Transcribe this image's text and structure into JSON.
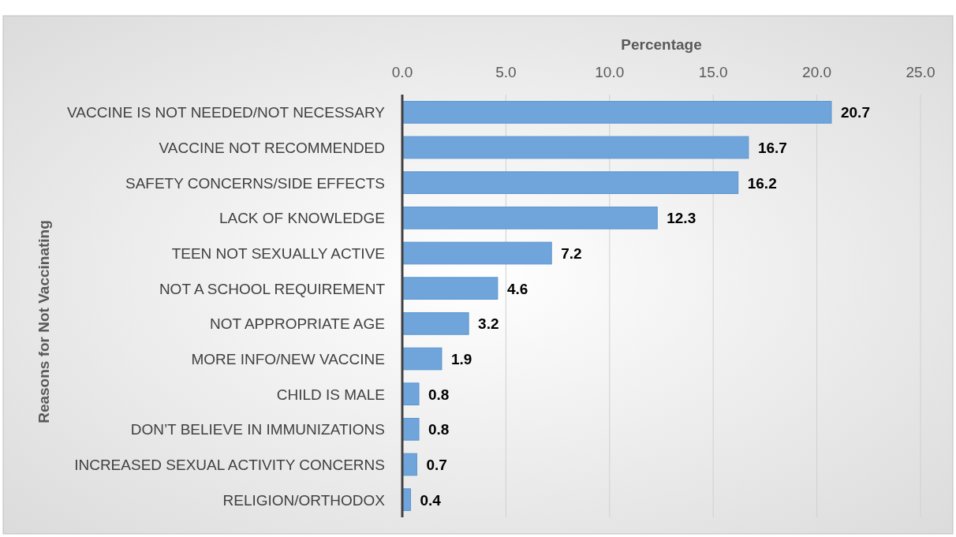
{
  "chart_data": {
    "type": "bar",
    "orientation": "horizontal",
    "xlabel": "Percentage",
    "ylabel": "Reasons for Not Vaccinating",
    "categories": [
      "VACCINE IS NOT NEEDED/NOT NECESSARY",
      "VACCINE NOT RECOMMENDED",
      "SAFETY CONCERNS/SIDE EFFECTS",
      "LACK OF KNOWLEDGE",
      "TEEN NOT SEXUALLY ACTIVE",
      "NOT A SCHOOL REQUIREMENT",
      "NOT APPROPRIATE AGE",
      "MORE INFO/NEW VACCINE",
      "CHILD IS MALE",
      "DON’T BELIEVE IN IMMUNIZATIONS",
      "INCREASED SEXUAL ACTIVITY CONCERNS",
      "RELIGION/ORTHODOX"
    ],
    "values": [
      20.7,
      16.7,
      16.2,
      12.3,
      7.2,
      4.6,
      3.2,
      1.9,
      0.8,
      0.8,
      0.7,
      0.4
    ],
    "color": "#6fa5da",
    "xlim": [
      0,
      25
    ],
    "xticks": [
      {
        "value": 0,
        "label": "0.0"
      },
      {
        "value": 5,
        "label": "5.0"
      },
      {
        "value": 10,
        "label": "10.0"
      },
      {
        "value": 15,
        "label": "15.0"
      },
      {
        "value": 20,
        "label": "20.0"
      },
      {
        "value": 25,
        "label": "25.0"
      }
    ],
    "grid": "x",
    "data_labels": true
  }
}
